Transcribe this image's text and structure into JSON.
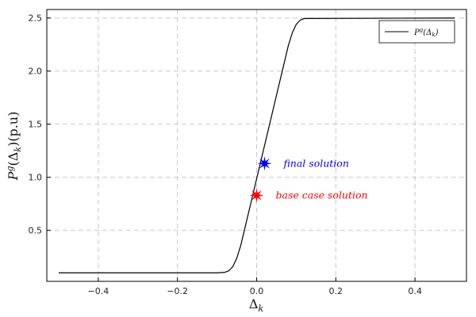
{
  "chart_data": {
    "type": "line",
    "xlabel": "Δk",
    "ylabel": "P^g(Δk)(p.u)",
    "xlim": [
      -0.53,
      0.53
    ],
    "ylim": [
      0.02,
      2.58
    ],
    "x_ticks": [
      -0.4,
      -0.2,
      0.0,
      0.2,
      0.4
    ],
    "x_tick_labels": [
      "−0.4",
      "−0.2",
      "0.0",
      "0.2",
      "0.4"
    ],
    "y_ticks": [
      0.5,
      1.0,
      1.5,
      2.0,
      2.5
    ],
    "y_tick_labels": [
      "0.5",
      "1.0",
      "1.5",
      "2.0",
      "2.5"
    ],
    "grid": true,
    "legend_position": "top-right",
    "series": [
      {
        "name": "P^g(Δk)",
        "color": "#000000",
        "x": [
          -0.5,
          -0.1,
          -0.08,
          -0.07,
          -0.06,
          -0.05,
          -0.04,
          0.08,
          0.09,
          0.1,
          0.11,
          0.12,
          0.5
        ],
        "y": [
          0.1,
          0.1,
          0.105,
          0.12,
          0.16,
          0.24,
          0.36,
          2.24,
          2.36,
          2.44,
          2.48,
          2.495,
          2.5
        ]
      }
    ],
    "markers": [
      {
        "label": "final solution",
        "x": 0.02,
        "y": 1.13,
        "color": "#0000ff"
      },
      {
        "label": "base case solution",
        "x": 0.0,
        "y": 0.83,
        "color": "#ff0000"
      }
    ]
  }
}
